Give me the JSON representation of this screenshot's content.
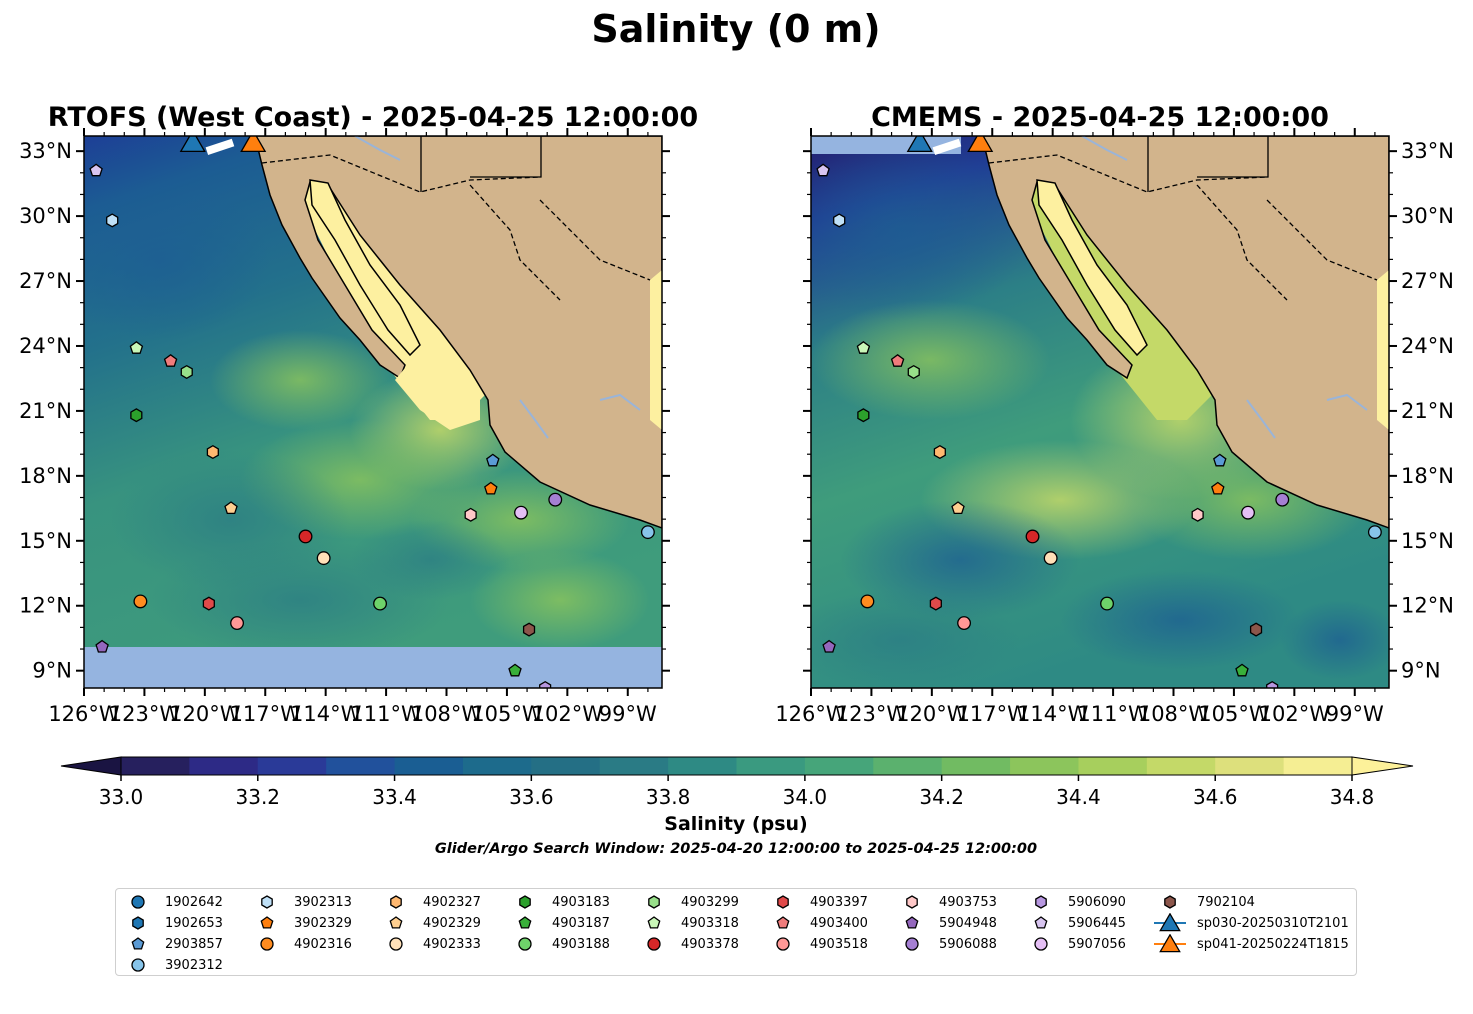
{
  "figure": {
    "suptitle": "Salinity (0 m)",
    "panels": [
      {
        "title": "RTOFS (West Coast) - 2025-04-25 12:00:00",
        "model": "RTOFS"
      },
      {
        "title": "CMEMS - 2025-04-25 12:00:00",
        "model": "CMEMS"
      }
    ],
    "lon_ticks": [
      "126°W",
      "123°W",
      "120°W",
      "117°W",
      "114°W",
      "111°W",
      "108°W",
      "105°W",
      "102°W",
      "99°W"
    ],
    "lat_ticks": [
      "33°N",
      "30°N",
      "27°N",
      "24°N",
      "21°N",
      "18°N",
      "15°N",
      "12°N",
      "9°N"
    ],
    "colorbar_label": "Salinity (psu)",
    "colorbar_ticks": [
      "33.0",
      "33.2",
      "33.4",
      "33.6",
      "33.8",
      "34.0",
      "34.2",
      "34.4",
      "34.6",
      "34.8"
    ],
    "search_window": "Glider/Argo Search Window: 2025-04-20 12:00:00 to 2025-04-25 12:00:00"
  },
  "colors": {
    "land": "#d2b48c",
    "gulf_shelf": "#fdf0a0",
    "nodata": "#95b4e0",
    "river": "#9ab4d8"
  },
  "chart_data": {
    "type": "map",
    "extent": {
      "lon": [
        -126,
        -97.3
      ],
      "lat": [
        8.2,
        33.7
      ]
    },
    "colorbar": {
      "vmin": 33.0,
      "vmax": 34.9,
      "step": 0.1,
      "colors": [
        "#26205e",
        "#2d2a86",
        "#2a3a98",
        "#21519c",
        "#1a5e93",
        "#1d6b8c",
        "#246f85",
        "#2a7b85",
        "#2e8a84",
        "#3a9a80",
        "#46a57a",
        "#5bb16e",
        "#71bb62",
        "#8cc55c",
        "#a7cf5d",
        "#c4d968",
        "#dde07c",
        "#f5ee93"
      ],
      "ticks": [
        33.0,
        33.2,
        33.4,
        33.6,
        33.8,
        34.0,
        34.2,
        34.4,
        34.6,
        34.8
      ],
      "extend": "both"
    },
    "platforms": [
      {
        "id": "1902642",
        "color": "#1f77b4",
        "marker": "circle",
        "lon": null,
        "lat": null
      },
      {
        "id": "1902653",
        "color": "#1f77b4",
        "marker": "hexagon",
        "lon": null,
        "lat": null
      },
      {
        "id": "2903857",
        "color": "#5b9bd5",
        "marker": "pentagon",
        "lon": -105.7,
        "lat": 18.7
      },
      {
        "id": "3902312",
        "color": "#87c4ea",
        "marker": "circle",
        "lon": -98.0,
        "lat": 15.4
      },
      {
        "id": "3902313",
        "color": "#bfe0f7",
        "marker": "hexagon",
        "lon": -124.6,
        "lat": 29.8
      },
      {
        "id": "3902329",
        "color": "#ff7f0e",
        "marker": "pentagon",
        "lon": -105.8,
        "lat": 17.4
      },
      {
        "id": "4902316",
        "color": "#ff8c20",
        "marker": "circle",
        "lon": -123.2,
        "lat": 12.2
      },
      {
        "id": "4902327",
        "color": "#ffb870",
        "marker": "hexagon",
        "lon": -119.6,
        "lat": 19.1
      },
      {
        "id": "4902329",
        "color": "#ffcf90",
        "marker": "pentagon",
        "lon": -118.7,
        "lat": 16.5
      },
      {
        "id": "4902333",
        "color": "#ffe0b8",
        "marker": "circle",
        "lon": -114.1,
        "lat": 14.2
      },
      {
        "id": "4903183",
        "color": "#2ca02c",
        "marker": "hexagon",
        "lon": -123.4,
        "lat": 20.8
      },
      {
        "id": "4903187",
        "color": "#39b03a",
        "marker": "pentagon",
        "lon": -104.6,
        "lat": 9.0
      },
      {
        "id": "4903188",
        "color": "#6ed26a",
        "marker": "circle",
        "lon": -111.3,
        "lat": 12.1
      },
      {
        "id": "4903299",
        "color": "#98df8a",
        "marker": "hexagon",
        "lon": -120.9,
        "lat": 22.8
      },
      {
        "id": "4903318",
        "color": "#c9f7b8",
        "marker": "pentagon",
        "lon": -123.4,
        "lat": 23.9
      },
      {
        "id": "4903378",
        "color": "#d62728",
        "marker": "circle",
        "lon": -115.0,
        "lat": 15.2
      },
      {
        "id": "4903397",
        "color": "#e04a4a",
        "marker": "hexagon",
        "lon": -119.8,
        "lat": 12.1
      },
      {
        "id": "4903400",
        "color": "#f07c7c",
        "marker": "pentagon",
        "lon": -121.7,
        "lat": 23.3
      },
      {
        "id": "4903518",
        "color": "#ff9896",
        "marker": "circle",
        "lon": -118.4,
        "lat": 11.2
      },
      {
        "id": "4903753",
        "color": "#ffc8c8",
        "marker": "hexagon",
        "lon": -106.8,
        "lat": 16.2
      },
      {
        "id": "5904948",
        "color": "#9467bd",
        "marker": "pentagon",
        "lon": -125.1,
        "lat": 10.1
      },
      {
        "id": "5906088",
        "color": "#a57fd3",
        "marker": "circle",
        "lon": -102.6,
        "lat": 16.9
      },
      {
        "id": "5906090",
        "color": "#b797e0",
        "marker": "hexagon",
        "lon": -103.1,
        "lat": 8.2
      },
      {
        "id": "5906445",
        "color": "#d8c5f0",
        "marker": "pentagon",
        "lon": -125.4,
        "lat": 32.1
      },
      {
        "id": "5907056",
        "color": "#e5bff5",
        "marker": "circle",
        "lon": -104.3,
        "lat": 16.3
      },
      {
        "id": "7902104",
        "color": "#8c564b",
        "marker": "hexagon",
        "lon": -103.9,
        "lat": 10.9
      }
    ],
    "gliders": [
      {
        "id": "sp030-20250310T2101",
        "color": "#1f77b4",
        "marker": "triangle",
        "lon": -120.6,
        "lat": 33.4
      },
      {
        "id": "sp041-20250224T1815",
        "color": "#ff7f0e",
        "marker": "triangle",
        "lon": -117.6,
        "lat": 33.4
      }
    ]
  }
}
